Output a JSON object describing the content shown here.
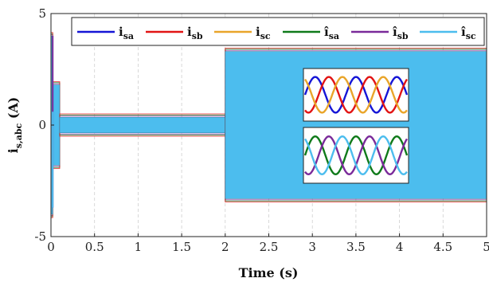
{
  "chart_data": {
    "type": "line",
    "xlabel": "Time (s)",
    "ylabel": {
      "main": "i",
      "sub": "s,abc",
      "unit": " (A)"
    },
    "xlim": [
      0,
      5
    ],
    "ylim": [
      -5,
      5
    ],
    "x_ticks": [
      0,
      0.5,
      1,
      1.5,
      2,
      2.5,
      3,
      3.5,
      4,
      4.5,
      5
    ],
    "x_tick_labels": [
      "0",
      "0.5",
      "1",
      "1.5",
      "2",
      "2.5",
      "3",
      "3.5",
      "4",
      "4.5",
      "5"
    ],
    "y_ticks": [
      -5,
      0,
      5
    ],
    "y_tick_labels": [
      "-5",
      "0",
      "5"
    ],
    "grid": true,
    "legend_position": "top",
    "series": [
      {
        "name": "i_sa",
        "label_main": "i",
        "label_sub": "sa",
        "color": "#1515d6",
        "phase_deg": 0
      },
      {
        "name": "i_sb",
        "label_main": "i",
        "label_sub": "sb",
        "color": "#e21414",
        "phase_deg": -120
      },
      {
        "name": "i_sc",
        "label_main": "i",
        "label_sub": "sc",
        "color": "#e9a52a",
        "phase_deg": 120
      },
      {
        "name": "î_sa",
        "label_main": "î",
        "label_sub": "sa",
        "color": "#0f7a1a",
        "phase_deg": 0
      },
      {
        "name": "î_sb",
        "label_main": "î",
        "label_sub": "sb",
        "color": "#7a2a9a",
        "phase_deg": -120
      },
      {
        "name": "î_sc",
        "label_main": "î",
        "label_sub": "sc",
        "color": "#4cbdee",
        "phase_deg": 120
      }
    ],
    "segments": [
      {
        "t_start": 0.0,
        "t_end": 0.02,
        "amplitude": 4.0,
        "note": "startup spike"
      },
      {
        "t_start": 0.02,
        "t_end": 0.1,
        "amplitude": 1.8
      },
      {
        "t_start": 0.1,
        "t_end": 2.0,
        "amplitude": 0.35
      },
      {
        "t_start": 2.0,
        "t_end": 5.0,
        "amplitude": 3.3
      }
    ],
    "insets": [
      {
        "series": [
          "i_sa",
          "i_sb",
          "i_sc"
        ]
      },
      {
        "series": [
          "î_sa",
          "î_sb",
          "î_sc"
        ]
      }
    ]
  }
}
